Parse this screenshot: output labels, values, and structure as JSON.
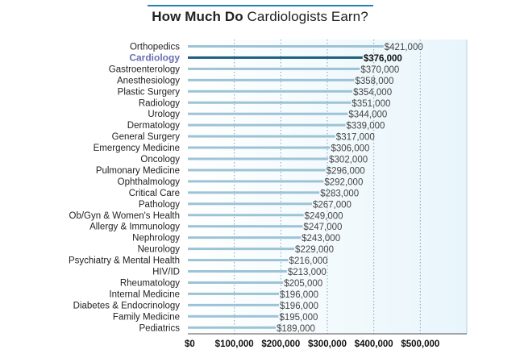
{
  "title": {
    "bold_part": "How Much Do",
    "rest": " Cardiologists Earn?"
  },
  "chart_data": {
    "type": "bar",
    "orientation": "horizontal",
    "title": "How Much Do Cardiologists Earn?",
    "xlabel": "",
    "ylabel": "",
    "xlim": [
      0,
      600000
    ],
    "grid": true,
    "highlight": "Cardiology",
    "categories": [
      "Orthopedics",
      "Cardiology",
      "Gastroenterology",
      "Anesthesiology",
      "Plastic Surgery",
      "Radiology",
      "Urology",
      "Dermatology",
      "General Surgery",
      "Emergency Medicine",
      "Oncology",
      "Pulmonary Medicine",
      "Ophthalmology",
      "Critical Care",
      "Pathology",
      "Ob/Gyn & Women's Health",
      "Allergy & Immunology",
      "Nephrology",
      "Neurology",
      "Psychiatry & Mental Health",
      "HIV/ID",
      "Rheumatology",
      "Internal Medicine",
      "Diabetes & Endocrinology",
      "Family Medicine",
      "Pediatrics"
    ],
    "values": [
      421000,
      376000,
      370000,
      358000,
      354000,
      351000,
      344000,
      339000,
      317000,
      306000,
      302000,
      296000,
      292000,
      283000,
      267000,
      249000,
      247000,
      243000,
      229000,
      216000,
      213000,
      205000,
      196000,
      196000,
      195000,
      189000
    ],
    "value_labels": [
      "$421,000",
      "$376,000",
      "$370,000",
      "$358,000",
      "$354,000",
      "$351,000",
      "$344,000",
      "$339,000",
      "$317,000",
      "$306,000",
      "$302,000",
      "$296,000",
      "$292,000",
      "$283,000",
      "$267,000",
      "$249,000",
      "$247,000",
      "$243,000",
      "$229,000",
      "$216,000",
      "$213,000",
      "$205,000",
      "$196,000",
      "$196,000",
      "$195,000",
      "$189,000"
    ],
    "x_ticks": [
      0,
      100000,
      200000,
      300000,
      400000,
      500000
    ],
    "x_tick_labels": [
      "$0",
      "$100,000",
      "$200,000",
      "$300,000",
      "$400,000",
      "$500,000"
    ]
  },
  "colors": {
    "bar": "#9cc3d6",
    "bar_highlight": "#1f5f80",
    "bg_gradient_start": "#ffffff",
    "bg_gradient_end": "#e8f5fb",
    "grid": "#7aa7bf",
    "title_rule": "#2a7fb0",
    "highlight_text": "#6a6fb0"
  }
}
